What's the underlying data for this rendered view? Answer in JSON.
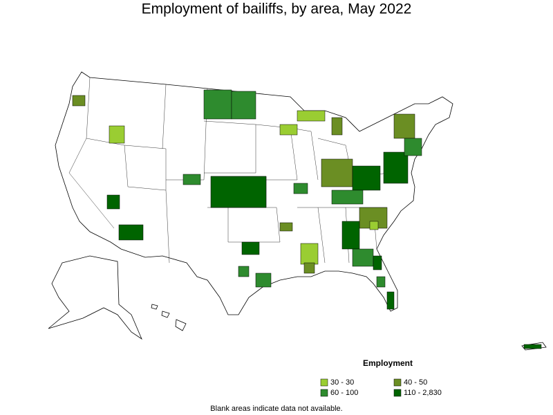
{
  "title": "Employment of bailiffs, by area, May 2022",
  "legend": {
    "title": "Employment",
    "items": [
      {
        "label": "30 - 30",
        "color": "#9acd32"
      },
      {
        "label": "40 - 50",
        "color": "#6b8e23"
      },
      {
        "label": "60 - 100",
        "color": "#2e8b2e"
      },
      {
        "label": "110 - 2,830",
        "color": "#006400"
      }
    ]
  },
  "footnote": "Blank areas indicate data not available."
}
